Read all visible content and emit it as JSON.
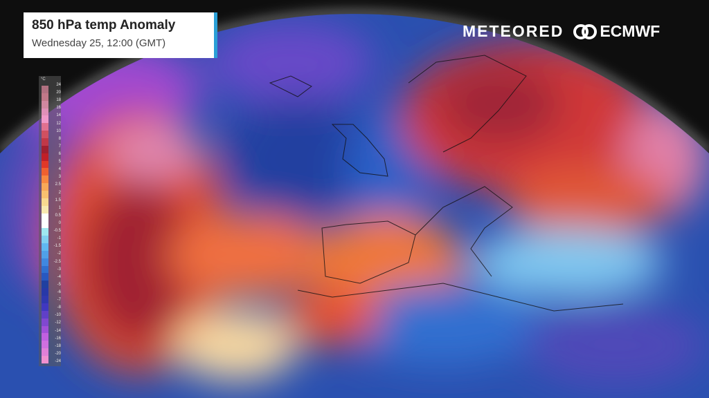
{
  "header": {
    "title": "850 hPa temp Anomaly",
    "subtitle": "Wednesday 25, 12:00 (GMT)"
  },
  "logos": {
    "meteored": "METEORED",
    "ecmwf": "ECMWF"
  },
  "legend": {
    "unit": "°C",
    "labels": [
      "24",
      "20",
      "18",
      "16",
      "14",
      "12",
      "10",
      "8",
      "7",
      "6",
      "5",
      "4",
      "3",
      "2.5",
      "2",
      "1.5",
      "1",
      "0.5",
      "0",
      "-0.5",
      "-1",
      "-1.5",
      "-2",
      "-2.5",
      "-3",
      "-4",
      "-5",
      "-6",
      "-7",
      "-8",
      "-10",
      "-12",
      "-14",
      "-16",
      "-18",
      "-20",
      "-24"
    ],
    "colors": [
      "#b07080",
      "#c07888",
      "#d088a0",
      "#e090b8",
      "#f098c8",
      "#e07090",
      "#d05060",
      "#c03848",
      "#a02030",
      "#c02028",
      "#e03828",
      "#f06030",
      "#f88840",
      "#f8a858",
      "#f8c070",
      "#f8d890",
      "#f8e8b0",
      "#ffffff",
      "#ffffff",
      "#a0e8f0",
      "#80d0f0",
      "#60b8f0",
      "#50a0e8",
      "#4088e0",
      "#3070d0",
      "#2858c0",
      "#2040a0",
      "#2838a8",
      "#3038b0",
      "#4038c0",
      "#6040c8",
      "#8048d0",
      "#a050d8",
      "#c060e0",
      "#d070e0",
      "#e080d8",
      "#f090d0"
    ]
  },
  "map": {
    "region": "North Atlantic and Europe",
    "background": "#0e0e0e"
  }
}
